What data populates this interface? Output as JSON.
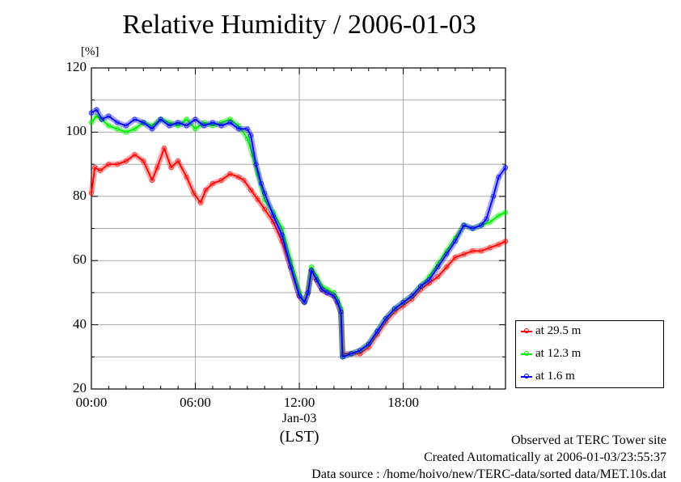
{
  "chart_data": {
    "type": "line",
    "title": "Relative Humidity / 2006-01-03",
    "ylabel": "[%]",
    "xlabel": "(LST)",
    "ylim": [
      20,
      120
    ],
    "xlim": [
      0,
      23.9
    ],
    "yticks": [
      "120",
      "100",
      "80",
      "60",
      "40",
      "20"
    ],
    "xticks": [
      "00:00",
      "06:00",
      "12:00",
      "18:00"
    ],
    "xtick_sub": "Jan-03",
    "grid": true,
    "legend_position": "right",
    "series": [
      {
        "name": "at 29.5 m",
        "color": "#ff0000",
        "x": [
          0,
          0.2,
          0.5,
          1,
          1.5,
          2,
          2.5,
          3,
          3.5,
          3.8,
          4.2,
          4.6,
          5,
          5.5,
          5.9,
          6.3,
          6.6,
          7,
          7.5,
          8,
          8.5,
          8.8,
          9.2,
          9.6,
          10,
          10.5,
          11,
          11.5,
          12,
          12.3,
          12.5,
          12.7,
          13,
          13.3,
          13.6,
          14,
          14.2,
          14.4,
          14.5,
          15,
          15.5,
          16,
          16.5,
          17,
          17.5,
          18,
          18.5,
          19,
          19.5,
          20,
          20.5,
          21,
          21.5,
          22,
          22.5,
          23,
          23.5,
          23.9
        ],
        "y": [
          81,
          89,
          88,
          90,
          90,
          91,
          93,
          91,
          85,
          89,
          95,
          89,
          91,
          86,
          81,
          78,
          82,
          84,
          85,
          87,
          86,
          85,
          82,
          79,
          76,
          72,
          66,
          58,
          49,
          47,
          50,
          57,
          54,
          51,
          50,
          49,
          47,
          44,
          31,
          31,
          31,
          33,
          37,
          41,
          44,
          46,
          48,
          51,
          53,
          55,
          58,
          61,
          62,
          63,
          63,
          64,
          65,
          66
        ]
      },
      {
        "name": "at 12.3 m",
        "color": "#00ee00",
        "x": [
          0,
          0.3,
          0.6,
          1,
          1.5,
          2,
          2.5,
          3,
          3.5,
          4,
          4.5,
          5,
          5.5,
          6,
          6.5,
          7,
          7.5,
          8,
          8.5,
          9,
          9.3,
          9.6,
          10,
          10.5,
          11,
          11.5,
          12,
          12.3,
          12.5,
          12.7,
          13,
          13.3,
          13.6,
          14,
          14.2,
          14.4,
          14.5,
          15,
          15.5,
          16,
          16.5,
          17,
          17.5,
          18,
          18.5,
          19,
          19.5,
          20,
          20.5,
          21,
          21.5,
          22,
          22.5,
          23,
          23.5,
          23.9
        ],
        "y": [
          103,
          105,
          104,
          102,
          101,
          100,
          101,
          103,
          102,
          104,
          103,
          102,
          104,
          101,
          103,
          102,
          103,
          104,
          102,
          98,
          93,
          87,
          79,
          75,
          70,
          60,
          50,
          47,
          50,
          58,
          55,
          52,
          51,
          50,
          48,
          45,
          30,
          31,
          32,
          34,
          38,
          42,
          45,
          47,
          49,
          52,
          55,
          59,
          63,
          67,
          71,
          70,
          71,
          72,
          74,
          75
        ]
      },
      {
        "name": "at 1.6 m",
        "color": "#0000ff",
        "x": [
          0,
          0.3,
          0.6,
          1,
          1.5,
          2,
          2.5,
          3,
          3.5,
          4,
          4.5,
          5,
          5.5,
          6,
          6.5,
          7,
          7.5,
          8,
          8.5,
          9,
          9.2,
          9.5,
          9.8,
          10,
          10.5,
          11,
          11.5,
          12,
          12.3,
          12.5,
          12.7,
          13,
          13.3,
          13.6,
          14,
          14.2,
          14.4,
          14.5,
          15,
          15.5,
          16,
          16.5,
          17,
          17.5,
          18,
          18.5,
          19,
          19.5,
          20,
          20.5,
          21,
          21.5,
          22,
          22.5,
          22.8,
          23.2,
          23.5,
          23.9
        ],
        "y": [
          106,
          107,
          104,
          105,
          103,
          102,
          104,
          103,
          101,
          104,
          102,
          103,
          102,
          104,
          102,
          103,
          102,
          103,
          101,
          101,
          99,
          90,
          84,
          81,
          74,
          68,
          58,
          49,
          47,
          50,
          57,
          54,
          51,
          50,
          49,
          47,
          44,
          30,
          31,
          32,
          34,
          38,
          42,
          45,
          47,
          49,
          52,
          54,
          58,
          62,
          66,
          71,
          70,
          71,
          73,
          80,
          86,
          89
        ]
      }
    ]
  },
  "footer": {
    "site": "Observed at TERC Tower site",
    "created": "Created Automatically at 2006-01-03/23:55:37",
    "source": "Data source : /home/hoivo/new/TERC-data/sorted  data/MET.10s.dat"
  }
}
